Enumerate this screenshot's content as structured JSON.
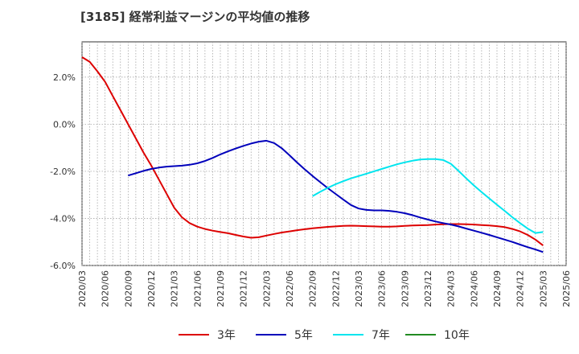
{
  "chart_data": {
    "type": "line",
    "title": "[3185]  経常利益マージンの平均値の推移",
    "y_ticks": [
      "2.0%",
      "0.0%",
      "-2.0%",
      "-4.0%",
      "-6.0%"
    ],
    "y_tick_values": [
      2,
      0,
      -2,
      -4,
      -6
    ],
    "ylim": [
      -6,
      3.5
    ],
    "x_ticks": [
      "2020/03",
      "2020/06",
      "2020/09",
      "2020/12",
      "2021/03",
      "2021/06",
      "2021/09",
      "2021/12",
      "2022/03",
      "2022/06",
      "2022/09",
      "2022/12",
      "2023/03",
      "2023/06",
      "2023/09",
      "2023/12",
      "2024/03",
      "2024/06",
      "2024/09",
      "2024/12",
      "2025/03",
      "2025/06"
    ],
    "grid": true,
    "legend_position": "bottom",
    "series": [
      {
        "name": "3年",
        "color": "#dd0000",
        "points": [
          [
            "2020/03",
            2.85
          ],
          [
            "2020/04",
            2.65
          ],
          [
            "2020/05",
            2.25
          ],
          [
            "2020/06",
            1.8
          ],
          [
            "2020/07",
            1.2
          ],
          [
            "2020/08",
            0.6
          ],
          [
            "2020/09",
            0.0
          ],
          [
            "2020/10",
            -0.6
          ],
          [
            "2020/11",
            -1.2
          ],
          [
            "2020/12",
            -1.75
          ],
          [
            "2021/01",
            -2.35
          ],
          [
            "2021/02",
            -2.95
          ],
          [
            "2021/03",
            -3.55
          ],
          [
            "2021/04",
            -3.95
          ],
          [
            "2021/05",
            -4.2
          ],
          [
            "2021/06",
            -4.35
          ],
          [
            "2021/07",
            -4.45
          ],
          [
            "2021/08",
            -4.52
          ],
          [
            "2021/09",
            -4.58
          ],
          [
            "2021/10",
            -4.63
          ],
          [
            "2021/11",
            -4.7
          ],
          [
            "2021/12",
            -4.77
          ],
          [
            "2022/01",
            -4.82
          ],
          [
            "2022/02",
            -4.8
          ],
          [
            "2022/03",
            -4.73
          ],
          [
            "2022/04",
            -4.66
          ],
          [
            "2022/05",
            -4.6
          ],
          [
            "2022/06",
            -4.55
          ],
          [
            "2022/07",
            -4.5
          ],
          [
            "2022/08",
            -4.46
          ],
          [
            "2022/09",
            -4.42
          ],
          [
            "2022/10",
            -4.39
          ],
          [
            "2022/11",
            -4.36
          ],
          [
            "2022/12",
            -4.34
          ],
          [
            "2023/01",
            -4.32
          ],
          [
            "2023/02",
            -4.31
          ],
          [
            "2023/03",
            -4.32
          ],
          [
            "2023/04",
            -4.33
          ],
          [
            "2023/05",
            -4.34
          ],
          [
            "2023/06",
            -4.35
          ],
          [
            "2023/07",
            -4.35
          ],
          [
            "2023/08",
            -4.34
          ],
          [
            "2023/09",
            -4.32
          ],
          [
            "2023/10",
            -4.3
          ],
          [
            "2023/11",
            -4.29
          ],
          [
            "2023/12",
            -4.28
          ],
          [
            "2024/01",
            -4.26
          ],
          [
            "2024/02",
            -4.25
          ],
          [
            "2024/03",
            -4.24
          ],
          [
            "2024/04",
            -4.24
          ],
          [
            "2024/05",
            -4.25
          ],
          [
            "2024/06",
            -4.26
          ],
          [
            "2024/07",
            -4.28
          ],
          [
            "2024/08",
            -4.3
          ],
          [
            "2024/09",
            -4.33
          ],
          [
            "2024/10",
            -4.37
          ],
          [
            "2024/11",
            -4.45
          ],
          [
            "2024/12",
            -4.55
          ],
          [
            "2025/01",
            -4.7
          ],
          [
            "2025/02",
            -4.9
          ],
          [
            "2025/03",
            -5.15
          ]
        ]
      },
      {
        "name": "5年",
        "color": "#0000bb",
        "points": [
          [
            "2020/09",
            -2.18
          ],
          [
            "2020/10",
            -2.08
          ],
          [
            "2020/11",
            -1.98
          ],
          [
            "2020/12",
            -1.9
          ],
          [
            "2021/01",
            -1.84
          ],
          [
            "2021/02",
            -1.8
          ],
          [
            "2021/03",
            -1.78
          ],
          [
            "2021/04",
            -1.76
          ],
          [
            "2021/05",
            -1.72
          ],
          [
            "2021/06",
            -1.66
          ],
          [
            "2021/07",
            -1.56
          ],
          [
            "2021/08",
            -1.43
          ],
          [
            "2021/09",
            -1.28
          ],
          [
            "2021/10",
            -1.15
          ],
          [
            "2021/11",
            -1.03
          ],
          [
            "2021/12",
            -0.92
          ],
          [
            "2022/01",
            -0.82
          ],
          [
            "2022/02",
            -0.74
          ],
          [
            "2022/03",
            -0.7
          ],
          [
            "2022/04",
            -0.8
          ],
          [
            "2022/05",
            -1.02
          ],
          [
            "2022/06",
            -1.32
          ],
          [
            "2022/07",
            -1.63
          ],
          [
            "2022/08",
            -1.92
          ],
          [
            "2022/09",
            -2.2
          ],
          [
            "2022/10",
            -2.46
          ],
          [
            "2022/11",
            -2.72
          ],
          [
            "2022/12",
            -2.96
          ],
          [
            "2023/01",
            -3.2
          ],
          [
            "2023/02",
            -3.43
          ],
          [
            "2023/03",
            -3.58
          ],
          [
            "2023/04",
            -3.64
          ],
          [
            "2023/05",
            -3.66
          ],
          [
            "2023/06",
            -3.66
          ],
          [
            "2023/07",
            -3.68
          ],
          [
            "2023/08",
            -3.72
          ],
          [
            "2023/09",
            -3.78
          ],
          [
            "2023/10",
            -3.86
          ],
          [
            "2023/11",
            -3.96
          ],
          [
            "2023/12",
            -4.05
          ],
          [
            "2024/01",
            -4.13
          ],
          [
            "2024/02",
            -4.2
          ],
          [
            "2024/03",
            -4.26
          ],
          [
            "2024/04",
            -4.34
          ],
          [
            "2024/05",
            -4.43
          ],
          [
            "2024/06",
            -4.52
          ],
          [
            "2024/07",
            -4.61
          ],
          [
            "2024/08",
            -4.7
          ],
          [
            "2024/09",
            -4.8
          ],
          [
            "2024/10",
            -4.9
          ],
          [
            "2024/11",
            -5.0
          ],
          [
            "2024/12",
            -5.11
          ],
          [
            "2025/01",
            -5.22
          ],
          [
            "2025/02",
            -5.32
          ],
          [
            "2025/03",
            -5.43
          ]
        ]
      },
      {
        "name": "7年",
        "color": "#00e5ee",
        "points": [
          [
            "2022/09",
            -3.05
          ],
          [
            "2022/10",
            -2.87
          ],
          [
            "2022/11",
            -2.7
          ],
          [
            "2022/12",
            -2.55
          ],
          [
            "2023/01",
            -2.42
          ],
          [
            "2023/02",
            -2.3
          ],
          [
            "2023/03",
            -2.2
          ],
          [
            "2023/04",
            -2.1
          ],
          [
            "2023/05",
            -2.0
          ],
          [
            "2023/06",
            -1.9
          ],
          [
            "2023/07",
            -1.8
          ],
          [
            "2023/08",
            -1.7
          ],
          [
            "2023/09",
            -1.62
          ],
          [
            "2023/10",
            -1.55
          ],
          [
            "2023/11",
            -1.5
          ],
          [
            "2023/12",
            -1.48
          ],
          [
            "2024/01",
            -1.48
          ],
          [
            "2024/02",
            -1.52
          ],
          [
            "2024/03",
            -1.68
          ],
          [
            "2024/04",
            -1.98
          ],
          [
            "2024/05",
            -2.3
          ],
          [
            "2024/06",
            -2.6
          ],
          [
            "2024/07",
            -2.88
          ],
          [
            "2024/08",
            -3.15
          ],
          [
            "2024/09",
            -3.42
          ],
          [
            "2024/10",
            -3.68
          ],
          [
            "2024/11",
            -3.95
          ],
          [
            "2024/12",
            -4.2
          ],
          [
            "2025/01",
            -4.43
          ],
          [
            "2025/02",
            -4.62
          ],
          [
            "2025/03",
            -4.58
          ]
        ]
      },
      {
        "name": "10年",
        "color": "#228b22",
        "points": []
      }
    ]
  }
}
